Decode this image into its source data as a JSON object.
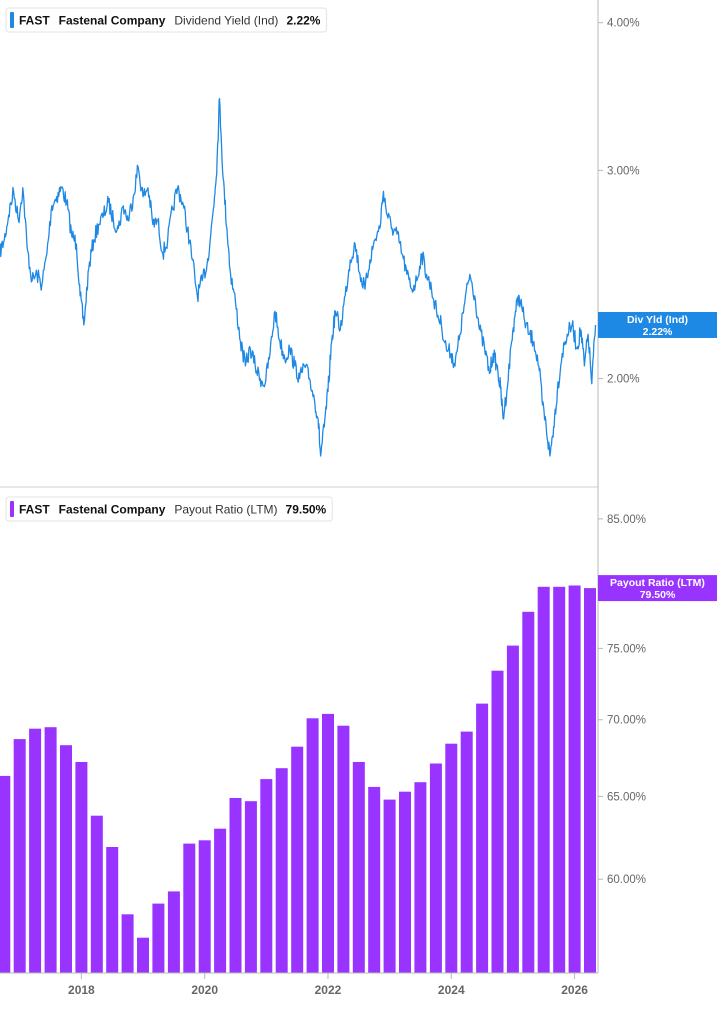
{
  "chart_data": [
    {
      "type": "line",
      "legend": {
        "ticker": "FAST",
        "company": "Fastenal Company",
        "metric": "Dividend Yield (Ind)",
        "value": "2.22%"
      },
      "series": [
        {
          "name": "Dividend Yield (Ind)",
          "color": "#1e88e5",
          "points": [
            [
              2016.67,
              2.55
            ],
            [
              2016.75,
              2.62
            ],
            [
              2016.82,
              2.75
            ],
            [
              2016.9,
              2.88
            ],
            [
              2016.98,
              2.72
            ],
            [
              2017.05,
              2.9
            ],
            [
              2017.12,
              2.58
            ],
            [
              2017.2,
              2.42
            ],
            [
              2017.28,
              2.45
            ],
            [
              2017.36,
              2.4
            ],
            [
              2017.44,
              2.55
            ],
            [
              2017.52,
              2.8
            ],
            [
              2017.6,
              2.85
            ],
            [
              2017.68,
              2.9
            ],
            [
              2017.76,
              2.82
            ],
            [
              2017.84,
              2.65
            ],
            [
              2017.92,
              2.6
            ],
            [
              2017.98,
              2.35
            ],
            [
              2018.04,
              2.22
            ],
            [
              2018.12,
              2.48
            ],
            [
              2018.2,
              2.62
            ],
            [
              2018.28,
              2.7
            ],
            [
              2018.36,
              2.75
            ],
            [
              2018.44,
              2.82
            ],
            [
              2018.52,
              2.72
            ],
            [
              2018.6,
              2.68
            ],
            [
              2018.68,
              2.8
            ],
            [
              2018.76,
              2.72
            ],
            [
              2018.84,
              2.85
            ],
            [
              2018.92,
              3.02
            ],
            [
              2019.0,
              2.85
            ],
            [
              2019.08,
              2.9
            ],
            [
              2019.16,
              2.7
            ],
            [
              2019.24,
              2.72
            ],
            [
              2019.32,
              2.55
            ],
            [
              2019.4,
              2.62
            ],
            [
              2019.48,
              2.78
            ],
            [
              2019.56,
              2.9
            ],
            [
              2019.64,
              2.82
            ],
            [
              2019.72,
              2.68
            ],
            [
              2019.8,
              2.52
            ],
            [
              2019.88,
              2.35
            ],
            [
              2019.96,
              2.42
            ],
            [
              2020.04,
              2.5
            ],
            [
              2020.1,
              2.65
            ],
            [
              2020.16,
              2.85
            ],
            [
              2020.2,
              3.05
            ],
            [
              2020.24,
              3.45
            ],
            [
              2020.3,
              2.95
            ],
            [
              2020.36,
              2.68
            ],
            [
              2020.42,
              2.45
            ],
            [
              2020.5,
              2.32
            ],
            [
              2020.58,
              2.15
            ],
            [
              2020.66,
              2.05
            ],
            [
              2020.74,
              2.12
            ],
            [
              2020.82,
              2.05
            ],
            [
              2020.9,
              2.0
            ],
            [
              2020.98,
              1.98
            ],
            [
              2021.06,
              2.1
            ],
            [
              2021.14,
              2.28
            ],
            [
              2021.22,
              2.15
            ],
            [
              2021.3,
              2.08
            ],
            [
              2021.38,
              2.12
            ],
            [
              2021.46,
              2.05
            ],
            [
              2021.54,
              2.0
            ],
            [
              2021.62,
              2.05
            ],
            [
              2021.7,
              2.0
            ],
            [
              2021.78,
              1.92
            ],
            [
              2021.84,
              1.85
            ],
            [
              2021.88,
              1.72
            ],
            [
              2021.94,
              1.82
            ],
            [
              2022.0,
              1.95
            ],
            [
              2022.06,
              2.15
            ],
            [
              2022.12,
              2.28
            ],
            [
              2022.2,
              2.2
            ],
            [
              2022.28,
              2.35
            ],
            [
              2022.36,
              2.52
            ],
            [
              2022.44,
              2.6
            ],
            [
              2022.52,
              2.45
            ],
            [
              2022.6,
              2.38
            ],
            [
              2022.68,
              2.52
            ],
            [
              2022.76,
              2.62
            ],
            [
              2022.84,
              2.68
            ],
            [
              2022.9,
              2.88
            ],
            [
              2022.96,
              2.75
            ],
            [
              2023.04,
              2.68
            ],
            [
              2023.12,
              2.65
            ],
            [
              2023.2,
              2.55
            ],
            [
              2023.28,
              2.45
            ],
            [
              2023.36,
              2.38
            ],
            [
              2023.44,
              2.42
            ],
            [
              2023.52,
              2.55
            ],
            [
              2023.6,
              2.45
            ],
            [
              2023.68,
              2.38
            ],
            [
              2023.76,
              2.28
            ],
            [
              2023.84,
              2.22
            ],
            [
              2023.92,
              2.12
            ],
            [
              2024.0,
              2.1
            ],
            [
              2024.06,
              2.05
            ],
            [
              2024.14,
              2.18
            ],
            [
              2024.22,
              2.32
            ],
            [
              2024.3,
              2.45
            ],
            [
              2024.38,
              2.35
            ],
            [
              2024.46,
              2.2
            ],
            [
              2024.54,
              2.12
            ],
            [
              2024.62,
              2.02
            ],
            [
              2024.68,
              2.1
            ],
            [
              2024.74,
              2.05
            ],
            [
              2024.8,
              1.96
            ],
            [
              2024.84,
              1.85
            ],
            [
              2024.9,
              1.95
            ],
            [
              2024.98,
              2.15
            ],
            [
              2025.04,
              2.28
            ],
            [
              2025.1,
              2.35
            ],
            [
              2025.18,
              2.25
            ],
            [
              2025.26,
              2.18
            ],
            [
              2025.34,
              2.15
            ],
            [
              2025.42,
              2.05
            ],
            [
              2025.48,
              1.9
            ],
            [
              2025.54,
              1.82
            ],
            [
              2025.6,
              1.72
            ],
            [
              2025.66,
              1.82
            ],
            [
              2025.72,
              1.95
            ],
            [
              2025.8,
              2.1
            ],
            [
              2025.88,
              2.18
            ],
            [
              2025.96,
              2.22
            ],
            [
              2026.04,
              2.12
            ],
            [
              2026.1,
              2.2
            ],
            [
              2026.16,
              2.05
            ],
            [
              2026.22,
              2.18
            ],
            [
              2026.28,
              1.98
            ],
            [
              2026.34,
              2.22
            ]
          ]
        }
      ],
      "yaxis": {
        "scale": "log",
        "ylim": [
          1.7,
          4.1
        ],
        "ticks": [
          {
            "value": 4.0,
            "label": "4.00%"
          },
          {
            "value": 3.0,
            "label": "3.00%"
          },
          {
            "value": 2.0,
            "label": "2.00%"
          }
        ]
      },
      "last_value_tag": {
        "label": "Div Yld (Ind)",
        "value": "2.22%",
        "y": 2.22,
        "color": "#1e88e5"
      },
      "grid": false
    },
    {
      "type": "bar",
      "legend": {
        "ticker": "FAST",
        "company": "Fastenal Company",
        "metric": "Payout Ratio (LTM)",
        "value": "79.50%"
      },
      "series": [
        {
          "name": "Payout Ratio (LTM)",
          "color": "#9933ff",
          "x": [
            2016.75,
            2017.0,
            2017.25,
            2017.5,
            2017.75,
            2018.0,
            2018.25,
            2018.5,
            2018.75,
            2019.0,
            2019.25,
            2019.5,
            2019.75,
            2020.0,
            2020.25,
            2020.5,
            2020.75,
            2021.0,
            2021.25,
            2021.5,
            2021.75,
            2022.0,
            2022.25,
            2022.5,
            2022.75,
            2023.0,
            2023.25,
            2023.5,
            2023.75,
            2024.0,
            2024.25,
            2024.5,
            2024.75,
            2025.0,
            2025.25,
            2025.5,
            2025.75,
            2026.0,
            2026.25
          ],
          "values": [
            66.3,
            68.7,
            69.4,
            69.5,
            68.3,
            67.2,
            63.8,
            61.9,
            58.0,
            56.7,
            58.6,
            59.3,
            62.1,
            62.3,
            63.0,
            64.9,
            64.7,
            66.1,
            66.8,
            68.2,
            70.1,
            70.4,
            69.6,
            67.2,
            65.6,
            64.8,
            65.3,
            65.9,
            67.1,
            68.4,
            69.2,
            71.1,
            73.4,
            75.2,
            77.7,
            79.6,
            79.6,
            79.7,
            79.5
          ]
        }
      ],
      "yaxis": {
        "scale": "log",
        "ylim": [
          54.8,
          85.9
        ],
        "ticks": [
          {
            "value": 85,
            "label": "85.00%"
          },
          {
            "value": 75,
            "label": "75.00%"
          },
          {
            "value": 70,
            "label": "70.00%"
          },
          {
            "value": 65,
            "label": "65.00%"
          },
          {
            "value": 60,
            "label": "60.00%"
          }
        ]
      },
      "last_value_tag": {
        "label": "Payout Ratio (LTM)",
        "value": "79.50%",
        "y": 79.5,
        "color": "#9933ff"
      },
      "grid": false
    }
  ],
  "xaxis": {
    "xlim": [
      2016.68,
      2026.38
    ],
    "ticks": [
      {
        "value": 2018,
        "label": "2018"
      },
      {
        "value": 2020,
        "label": "2020"
      },
      {
        "value": 2022,
        "label": "2022"
      },
      {
        "value": 2024,
        "label": "2024"
      },
      {
        "value": 2026,
        "label": "2026"
      }
    ]
  }
}
